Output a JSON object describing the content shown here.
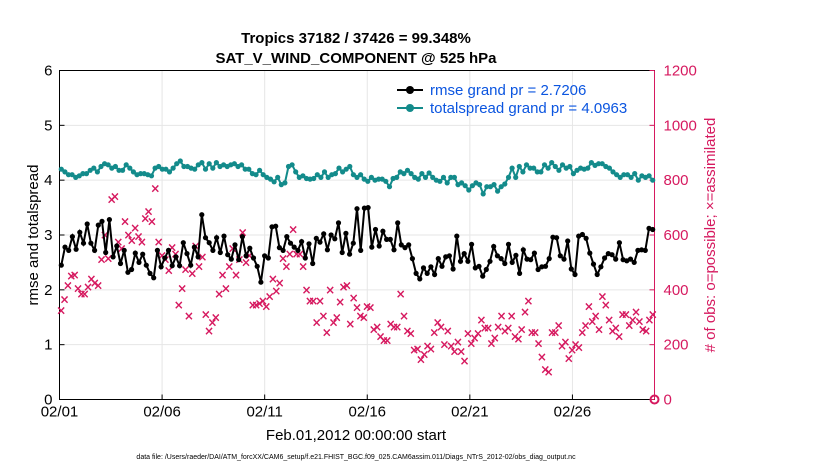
{
  "chart_data": {
    "type": "line",
    "title": "Tropics 37182 / 37426 = 99.348%",
    "subtitle": "SAT_V_WIND_COMPONENT @ 525 hPa",
    "xlabel": "Feb.01,2012 00:00:00 start",
    "ylabel": "rmse and totalspread",
    "y2label": "# of obs: o=possible; ×=assimilated",
    "footnote": "data file: /Users/raeder/DAI/ATM_forcXX/CAM6_setup/f.e21.FHIST_BGC.f09_025.CAM6assim.011/Diags_NTrS_2012-02/obs_diag_output.nc",
    "xlim": [
      0,
      29
    ],
    "ylim": [
      0,
      6
    ],
    "y2lim": [
      0,
      1200
    ],
    "x_ticks": [
      0,
      5,
      10,
      15,
      20,
      25
    ],
    "x_tick_labels": [
      "02/01",
      "02/06",
      "02/11",
      "02/16",
      "02/21",
      "02/26"
    ],
    "y_ticks": [
      0,
      1,
      2,
      3,
      4,
      5,
      6
    ],
    "y_tick_labels": [
      "0",
      "1",
      "2",
      "3",
      "4",
      "5",
      "6"
    ],
    "y2_ticks": [
      0,
      200,
      400,
      600,
      800,
      1000,
      1200
    ],
    "y2_tick_labels": [
      "0",
      "200",
      "400",
      "600",
      "800",
      "1000",
      "1200"
    ],
    "colors": {
      "rmse": "#000000",
      "spread": "#138b8b",
      "obs": "#d6195f",
      "legend_text": "#0b55e0",
      "grid": "#e6e6e6"
    },
    "legend": {
      "position": "top-right",
      "entries": [
        "rmse grand pr = 2.7206",
        "totalspread grand pr = 4.0963"
      ]
    },
    "series": [
      {
        "name": "rmse",
        "axis": "left",
        "values": [
          2.45,
          2.78,
          2.72,
          2.97,
          2.74,
          3.05,
          2.85,
          3.2,
          2.85,
          2.72,
          3.18,
          3.25,
          2.68,
          3.28,
          2.6,
          2.8,
          2.48,
          2.72,
          2.32,
          2.37,
          2.67,
          2.5,
          2.65,
          2.45,
          2.3,
          2.22,
          2.72,
          2.42,
          2.58,
          2.72,
          2.44,
          2.6,
          2.44,
          2.86,
          2.66,
          2.45,
          2.78,
          2.6,
          3.37,
          2.95,
          2.86,
          2.72,
          2.95,
          2.68,
          2.98,
          2.64,
          2.56,
          2.82,
          2.55,
          2.97,
          2.62,
          2.76,
          2.58,
          2.43,
          2.14,
          2.62,
          2.58,
          3.15,
          3.16,
          2.77,
          2.72,
          2.97,
          2.85,
          2.78,
          2.72,
          2.88,
          2.58,
          2.84,
          2.48,
          2.94,
          2.87,
          3.02,
          2.73,
          3.0,
          2.93,
          3.22,
          2.68,
          3.03,
          2.65,
          2.85,
          3.48,
          2.72,
          3.49,
          3.5,
          2.78,
          3.1,
          2.8,
          3.07,
          2.92,
          2.92,
          2.73,
          3.22,
          2.82,
          2.77,
          2.82,
          2.57,
          2.3,
          2.2,
          2.4,
          2.3,
          2.42,
          2.28,
          2.57,
          2.43,
          2.6,
          2.62,
          2.38,
          2.98,
          2.52,
          2.66,
          2.52,
          2.83,
          2.4,
          2.43,
          2.25,
          2.37,
          2.52,
          2.79,
          2.62,
          2.57,
          2.48,
          2.83,
          2.5,
          2.63,
          2.3,
          2.73,
          2.56,
          2.55,
          2.67,
          2.37,
          2.42,
          2.43,
          2.57,
          2.96,
          2.95,
          2.62,
          2.56,
          2.89,
          2.38,
          2.28,
          2.98,
          3.01,
          2.94,
          2.67,
          2.47,
          2.28,
          2.42,
          2.58,
          2.66,
          2.64,
          2.56,
          2.86,
          2.55,
          2.53,
          2.56,
          2.5,
          2.72,
          2.73,
          2.72,
          3.12,
          3.1
        ]
      },
      {
        "name": "totalspread",
        "axis": "left",
        "values": [
          4.2,
          4.15,
          4.1,
          4.1,
          4.05,
          4.08,
          4.12,
          4.12,
          4.18,
          4.22,
          4.15,
          4.25,
          4.3,
          4.28,
          4.22,
          4.25,
          4.18,
          4.18,
          4.28,
          4.22,
          4.15,
          4.1,
          4.12,
          4.12,
          4.1,
          4.08,
          4.22,
          4.25,
          4.2,
          4.2,
          4.15,
          4.22,
          4.3,
          4.35,
          4.25,
          4.25,
          4.22,
          4.2,
          4.28,
          4.32,
          4.2,
          4.3,
          4.22,
          4.32,
          4.25,
          4.28,
          4.25,
          4.28,
          4.3,
          4.25,
          4.28,
          4.2,
          4.2,
          4.12,
          4.1,
          4.18,
          4.1,
          4.05,
          4.02,
          3.97,
          4.05,
          3.92,
          3.95,
          4.25,
          4.28,
          4.15,
          4.05,
          4.08,
          4.03,
          4.02,
          4.03,
          4.1,
          4.05,
          4.15,
          4.05,
          4.1,
          4.12,
          4.22,
          4.15,
          4.2,
          4.25,
          4.1,
          4.05,
          4.1,
          4.02,
          3.98,
          4.05,
          4.0,
          4.02,
          4.02,
          3.98,
          3.88,
          4.03,
          4.05,
          4.15,
          4.12,
          4.18,
          4.12,
          4.05,
          4.02,
          4.12,
          4.05,
          4.13,
          4.05,
          4.0,
          3.98,
          4.05,
          3.95,
          4.05,
          4.05,
          3.92,
          3.95,
          3.9,
          3.82,
          3.9,
          3.95,
          3.92,
          3.75,
          3.88,
          3.88,
          3.92,
          3.8,
          3.88,
          3.93,
          4.05,
          4.22,
          4.05,
          4.25,
          4.15,
          4.28,
          4.22,
          4.22,
          4.15,
          4.15,
          4.28,
          4.22,
          4.32,
          4.25,
          4.18,
          4.28,
          4.22,
          4.25,
          4.12,
          4.18,
          4.22,
          4.2,
          4.22,
          4.32,
          4.27,
          4.3,
          4.3,
          4.25,
          4.22,
          4.15,
          4.1,
          4.05,
          4.1,
          4.1,
          4.05,
          4.12,
          4.0,
          4.08,
          4.05,
          4.08,
          4.0
        ]
      },
      {
        "name": "assimilated obs",
        "axis": "right",
        "values": [
          325,
          365,
          415,
          450,
          455,
          405,
          385,
          385,
          410,
          440,
          425,
          415,
          510,
          600,
          515,
          730,
          740,
          575,
          550,
          650,
          600,
          580,
          625,
          595,
          575,
          660,
          685,
          650,
          770,
          575,
          525,
          510,
          470,
          555,
          530,
          345,
          405,
          475,
          305,
          460,
          560,
          485,
          520,
          310,
          250,
          280,
          300,
          385,
          455,
          405,
          485,
          550,
          455,
          510,
          610,
          500,
          525,
          345,
          345,
          350,
          360,
          340,
          375,
          440,
          395,
          425,
          515,
          485,
          530,
          620,
          530,
          530,
          485,
          400,
          360,
          360,
          280,
          360,
          305,
          245,
          400,
          280,
          300,
          355,
          410,
          415,
          275,
          370,
          335,
          305,
          300,
          340,
          335,
          255,
          265,
          230,
          215,
          215,
          275,
          265,
          265,
          385,
          305,
          250,
          240,
          180,
          185,
          145,
          165,
          195,
          185,
          245,
          280,
          265,
          200,
          250,
          195,
          175,
          210,
          175,
          140,
          240,
          205,
          225,
          240,
          290,
          260,
          260,
          205,
          225,
          265,
          305,
          250,
          260,
          305,
          230,
          220,
          255,
          320,
          360,
          245,
          245,
          205,
          155,
          110,
          100,
          245,
          245,
          270,
          195,
          210,
          150,
          180,
          200,
          190,
          245,
          270,
          340,
          285,
          305,
          255,
          375,
          345,
          290,
          250,
          260,
          230,
          310,
          310,
          270,
          290,
          320,
          285,
          255,
          250,
          290,
          310
        ]
      }
    ],
    "annotations": [
      {
        "x": 29,
        "y2": 0,
        "marker": "o",
        "note": "possible obs marker at right edge"
      }
    ]
  }
}
